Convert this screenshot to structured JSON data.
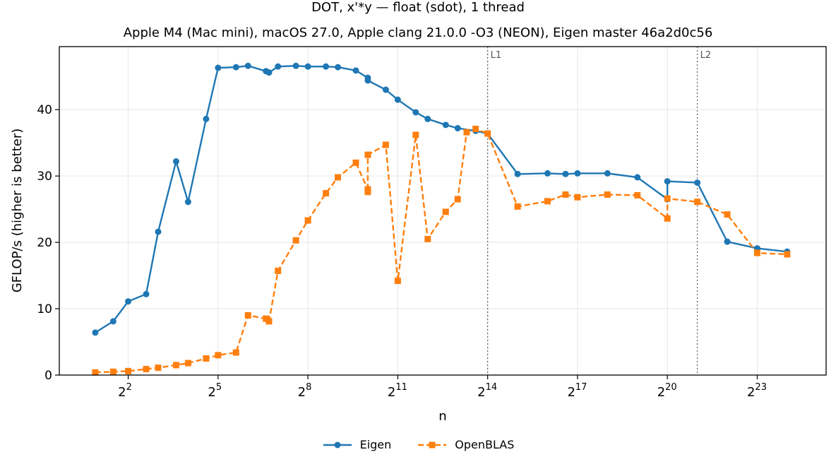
{
  "chart_data": {
    "type": "line",
    "title": "DOT, x'*y — float (sdot), 1 thread",
    "subtitle": "Apple M4 (Mac mini), macOS 27.0, Apple clang 21.0.0 -O3 (NEON), Eigen master 46a2d0c56",
    "xlabel": "n",
    "ylabel": "GFLOP/s (higher is better)",
    "x_scale": "log2",
    "xlim_log2": [
      -0.3,
      25.3
    ],
    "ylim": [
      0,
      49.5
    ],
    "x_ticks": [
      {
        "exp": 2,
        "base": "2",
        "sup": "2"
      },
      {
        "exp": 5,
        "base": "2",
        "sup": "5"
      },
      {
        "exp": 8,
        "base": "2",
        "sup": "8"
      },
      {
        "exp": 11,
        "base": "2",
        "sup": "11"
      },
      {
        "exp": 14,
        "base": "2",
        "sup": "14"
      },
      {
        "exp": 17,
        "base": "2",
        "sup": "17"
      },
      {
        "exp": 20,
        "base": "2",
        "sup": "20"
      },
      {
        "exp": 23,
        "base": "2",
        "sup": "23"
      }
    ],
    "y_ticks": [
      0,
      10,
      20,
      30,
      40
    ],
    "grid": true,
    "legend_position": "bottom-center",
    "vlines": [
      {
        "label": "L1",
        "x_log2": 14
      },
      {
        "label": "L2",
        "x_log2": 21
      }
    ],
    "series": [
      {
        "name": "Eigen",
        "color": "#1f77b4",
        "marker": "circle",
        "linestyle": "solid",
        "points": [
          [
            0.9,
            6.4
          ],
          [
            1.5,
            8.1
          ],
          [
            2.0,
            11.1
          ],
          [
            2.6,
            12.2
          ],
          [
            3.0,
            21.6
          ],
          [
            3.6,
            32.2
          ],
          [
            4.0,
            26.1
          ],
          [
            4.6,
            38.6
          ],
          [
            5.0,
            46.3
          ],
          [
            5.6,
            46.4
          ],
          [
            6.0,
            46.6
          ],
          [
            6.6,
            45.8
          ],
          [
            6.7,
            45.6
          ],
          [
            7.0,
            46.5
          ],
          [
            7.6,
            46.6
          ],
          [
            8.0,
            46.5
          ],
          [
            8.6,
            46.5
          ],
          [
            9.0,
            46.4
          ],
          [
            9.6,
            45.9
          ],
          [
            10.0,
            44.8
          ],
          [
            10.0,
            44.4
          ],
          [
            10.6,
            43.0
          ],
          [
            11.0,
            41.5
          ],
          [
            11.6,
            39.6
          ],
          [
            12.0,
            38.6
          ],
          [
            12.6,
            37.7
          ],
          [
            13.0,
            37.2
          ],
          [
            13.6,
            36.8
          ],
          [
            14.0,
            36.4
          ],
          [
            15.0,
            30.3
          ],
          [
            16.0,
            30.4
          ],
          [
            16.6,
            30.3
          ],
          [
            17.0,
            30.4
          ],
          [
            18.0,
            30.4
          ],
          [
            19.0,
            29.8
          ],
          [
            20.0,
            26.5
          ],
          [
            20.0,
            29.2
          ],
          [
            21.0,
            29.0
          ],
          [
            22.0,
            20.1
          ],
          [
            23.0,
            19.1
          ],
          [
            24.0,
            18.6
          ]
        ]
      },
      {
        "name": "OpenBLAS",
        "color": "#ff7f0e",
        "marker": "square",
        "linestyle": "dashed",
        "points": [
          [
            0.9,
            0.4
          ],
          [
            1.5,
            0.5
          ],
          [
            2.0,
            0.6
          ],
          [
            2.6,
            0.9
          ],
          [
            3.0,
            1.1
          ],
          [
            3.6,
            1.5
          ],
          [
            4.0,
            1.8
          ],
          [
            4.6,
            2.5
          ],
          [
            5.0,
            3.0
          ],
          [
            5.6,
            3.4
          ],
          [
            6.0,
            9.0
          ],
          [
            6.6,
            8.5
          ],
          [
            6.7,
            8.1
          ],
          [
            7.0,
            15.7
          ],
          [
            7.6,
            20.3
          ],
          [
            8.0,
            23.3
          ],
          [
            8.6,
            27.4
          ],
          [
            9.0,
            29.8
          ],
          [
            9.6,
            32.0
          ],
          [
            10.0,
            28.0
          ],
          [
            10.0,
            27.6
          ],
          [
            10.0,
            33.2
          ],
          [
            10.6,
            34.7
          ],
          [
            11.0,
            14.2
          ],
          [
            11.6,
            36.2
          ],
          [
            12.0,
            20.5
          ],
          [
            12.6,
            24.6
          ],
          [
            13.0,
            26.5
          ],
          [
            13.3,
            36.6
          ],
          [
            13.6,
            37.1
          ],
          [
            14.0,
            36.4
          ],
          [
            15.0,
            25.4
          ],
          [
            16.0,
            26.2
          ],
          [
            16.6,
            27.2
          ],
          [
            17.0,
            26.8
          ],
          [
            18.0,
            27.2
          ],
          [
            19.0,
            27.1
          ],
          [
            20.0,
            23.6
          ],
          [
            20.0,
            26.6
          ],
          [
            21.0,
            26.1
          ],
          [
            22.0,
            24.2
          ],
          [
            23.0,
            18.4
          ],
          [
            24.0,
            18.2
          ]
        ]
      }
    ]
  }
}
